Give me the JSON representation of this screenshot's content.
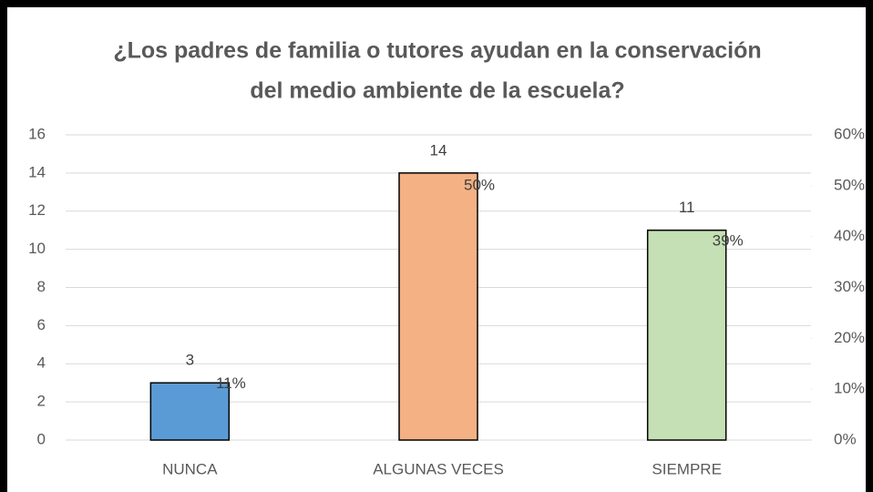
{
  "chart_data": {
    "type": "bar",
    "title": [
      "¿Los padres de familia o tutores ayudan en la conservación",
      "del medio ambiente de la escuela?"
    ],
    "categories": [
      "NUNCA",
      "ALGUNAS VECES",
      "SIEMPRE"
    ],
    "series": [
      {
        "values": [
          3,
          14,
          11
        ],
        "colors": [
          "#5b9bd5",
          "#f4b183",
          "#c5e0b4"
        ]
      },
      {
        "axis": "y2",
        "values": [
          11,
          50,
          39
        ],
        "value_labels": [
          "11%",
          "50%",
          "39%"
        ]
      }
    ],
    "ylim": [
      0,
      16
    ],
    "yticks": [
      0,
      2,
      4,
      6,
      8,
      10,
      12,
      14,
      16
    ],
    "y2lim": [
      0,
      60
    ],
    "y2ticks": [
      {
        "value": 0,
        "label": "0%"
      },
      {
        "value": 10,
        "label": "10%"
      },
      {
        "value": 20,
        "label": "20%"
      },
      {
        "value": 30,
        "label": "30%"
      },
      {
        "value": 40,
        "label": "40%"
      },
      {
        "value": 50,
        "label": "50%"
      },
      {
        "value": 60,
        "label": "60%"
      }
    ],
    "grid": true
  }
}
